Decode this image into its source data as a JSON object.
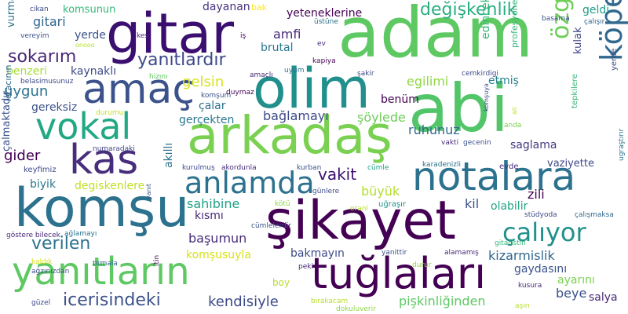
{
  "words": [
    {
      "text": "adam",
      "color": "#5ec962"
    },
    {
      "text": "abi",
      "color": "#52c569"
    },
    {
      "text": "gitar",
      "color": "#3b0f70"
    },
    {
      "text": "olim",
      "color": "#21908d"
    },
    {
      "text": "arkadaş",
      "color": "#7ad151"
    },
    {
      "text": "şikayet",
      "color": "#440154"
    },
    {
      "text": "komşu",
      "color": "#2c728e"
    },
    {
      "text": "yanıtların",
      "color": "#5ec962"
    },
    {
      "text": "tuğlaları",
      "color": "#440154"
    },
    {
      "text": "notalara",
      "color": "#2c728e"
    },
    {
      "text": "amaç",
      "color": "#3b528b"
    },
    {
      "text": "vokal",
      "color": "#22a884"
    },
    {
      "text": "kas",
      "color": "#472d7b"
    },
    {
      "text": "anlamda",
      "color": "#2c728e"
    },
    {
      "text": "köpeğin",
      "color": "#31688e"
    },
    {
      "text": "özgüven",
      "color": "#6ece58"
    },
    {
      "text": "çalıyor",
      "color": "#21918c"
    },
    {
      "text": "değişkenlik",
      "color": "#28ae80"
    },
    {
      "text": "yanıtlardır",
      "color": "#3e4a89"
    },
    {
      "text": "sokarım",
      "color": "#482878"
    },
    {
      "text": "yeteneklerine",
      "color": "#440154"
    },
    {
      "text": "komsunun",
      "color": "#35b779"
    },
    {
      "text": "dayanan",
      "color": "#46337e"
    },
    {
      "text": "bak",
      "color": "#fde725"
    },
    {
      "text": "geldi",
      "color": "#1f9e89"
    },
    {
      "text": "gitari",
      "color": "#31688e"
    },
    {
      "text": "yerde",
      "color": "#3b528b"
    },
    {
      "text": "vurma",
      "color": "#2c728e"
    },
    {
      "text": "amfi",
      "color": "#482878"
    },
    {
      "text": "brutal",
      "color": "#2a788e"
    },
    {
      "text": "kulak",
      "color": "#414487"
    },
    {
      "text": "edincek",
      "color": "#35b779"
    },
    {
      "text": "benzeri",
      "color": "#a5db36"
    },
    {
      "text": "kaynaklı",
      "color": "#3e4a89"
    },
    {
      "text": "uygun",
      "color": "#2c728e"
    },
    {
      "text": "gelsin",
      "color": "#d8e219"
    },
    {
      "text": "egilimi",
      "color": "#8fd744"
    },
    {
      "text": "etmiş",
      "color": "#26828e"
    },
    {
      "text": "benüm",
      "color": "#440154"
    },
    {
      "text": "çalar",
      "color": "#2c728e"
    },
    {
      "text": "gereksiz",
      "color": "#3b528b"
    },
    {
      "text": "gerçekten",
      "color": "#2a788e"
    },
    {
      "text": "bağlamayı",
      "color": "#3e4a89"
    },
    {
      "text": "şöylede",
      "color": "#6ece58"
    },
    {
      "text": "ruhunuz",
      "color": "#31688e"
    },
    {
      "text": "saglama",
      "color": "#443983"
    },
    {
      "text": "gider",
      "color": "#440154"
    },
    {
      "text": "vakit",
      "color": "#3b0f70"
    },
    {
      "text": "büyük",
      "color": "#b5de2b"
    },
    {
      "text": "zili",
      "color": "#440154"
    },
    {
      "text": "vaziyette",
      "color": "#3e4a89"
    },
    {
      "text": "biyik",
      "color": "#2a788e"
    },
    {
      "text": "degiskenlere",
      "color": "#c2df23"
    },
    {
      "text": "akıllı",
      "color": "#2c728e"
    },
    {
      "text": "sahibine",
      "color": "#1fa187"
    },
    {
      "text": "kil",
      "color": "#3b528b"
    },
    {
      "text": "olabilir",
      "color": "#20a486"
    },
    {
      "text": "kısmı",
      "color": "#482878"
    },
    {
      "text": "kizarmislik",
      "color": "#31688e"
    },
    {
      "text": "verilen",
      "color": "#2c728e"
    },
    {
      "text": "başumun",
      "color": "#472d7b"
    },
    {
      "text": "komşusuyla",
      "color": "#d8e219"
    },
    {
      "text": "bakmayın",
      "color": "#3e4a89"
    },
    {
      "text": "gaydasını",
      "color": "#3b528b"
    },
    {
      "text": "ayarını",
      "color": "#7ad151"
    },
    {
      "text": "beye",
      "color": "#3b528b"
    },
    {
      "text": "salya",
      "color": "#482878"
    },
    {
      "text": "icerisindeki",
      "color": "#3b528b"
    },
    {
      "text": "kendisiyle",
      "color": "#3e4a89"
    },
    {
      "text": "pişkinliğinden",
      "color": "#5ec962"
    },
    {
      "text": "boy",
      "color": "#b5de2b"
    },
    {
      "text": "çalmaktadır",
      "color": "#3b528b"
    },
    {
      "text": "icracının",
      "color": "#31688e"
    },
    {
      "text": "profesyonel",
      "color": "#35b779"
    },
    {
      "text": "tepkilere",
      "color": "#35b779"
    },
    {
      "text": "ugraştırır",
      "color": "#2c728e"
    },
    {
      "text": "yerde",
      "color": "#3e4a89"
    },
    {
      "text": "kurulmuş",
      "color": "#3e4a89"
    },
    {
      "text": "akordunla",
      "color": "#472d7b"
    },
    {
      "text": "kurban",
      "color": "#3b528b"
    },
    {
      "text": "cümle",
      "color": "#1fa187"
    },
    {
      "text": "evde",
      "color": "#472d7b"
    },
    {
      "text": "keyfimiz",
      "color": "#3e4a89"
    },
    {
      "text": "numaradaki",
      "color": "#414487"
    },
    {
      "text": "vakti",
      "color": "#472d7b"
    },
    {
      "text": "gecenin",
      "color": "#3b528b"
    },
    {
      "text": "karadenizli",
      "color": "#2c728e"
    },
    {
      "text": "çalışmaksa",
      "color": "#31688e"
    },
    {
      "text": "stüdyoda",
      "color": "#3e4a89"
    },
    {
      "text": "gitaristin",
      "color": "#35b779"
    },
    {
      "text": "alamamış",
      "color": "#482878"
    },
    {
      "text": "yanittir",
      "color": "#3b528b"
    },
    {
      "text": "durur",
      "color": "#8fd744"
    },
    {
      "text": "uğraşır",
      "color": "#21918c"
    },
    {
      "text": "günlere",
      "color": "#3e4a89"
    },
    {
      "text": "kötü",
      "color": "#8fd744"
    },
    {
      "text": "orani",
      "color": "#b5de2b"
    },
    {
      "text": "cümlelerdir",
      "color": "#3b528b"
    },
    {
      "text": "göstere bilecek",
      "color": "#482878"
    },
    {
      "text": "ağlamayı",
      "color": "#2c728e"
    },
    {
      "text": "kaldık",
      "color": "#d8e219"
    },
    {
      "text": "tırmala",
      "color": "#31688e"
    },
    {
      "text": "ağzınızdan",
      "color": "#3b528b"
    },
    {
      "text": "itin",
      "color": "#440154"
    },
    {
      "text": "güzel",
      "color": "#3e4a89"
    },
    {
      "text": "peki",
      "color": "#482878"
    },
    {
      "text": "bırakacam",
      "color": "#b5de2b"
    },
    {
      "text": "dokuluverir",
      "color": "#8fd744"
    },
    {
      "text": "aşırı",
      "color": "#b5de2b"
    },
    {
      "text": "kusura",
      "color": "#482878"
    },
    {
      "text": "cikan",
      "color": "#3e4a89"
    },
    {
      "text": "vereyim",
      "color": "#3b528b"
    },
    {
      "text": "kes",
      "color": "#482878"
    },
    {
      "text": "onooo",
      "color": "#b5de2b"
    },
    {
      "text": "iş",
      "color": "#440154"
    },
    {
      "text": "üstüne",
      "color": "#2c728e"
    },
    {
      "text": "ev",
      "color": "#482878"
    },
    {
      "text": "basama",
      "color": "#3b528b"
    },
    {
      "text": "çalışır",
      "color": "#31688e"
    },
    {
      "text": "kapiya",
      "color": "#440154"
    },
    {
      "text": "şakir",
      "color": "#3e4a89"
    },
    {
      "text": "uyum",
      "color": "#2c728e"
    },
    {
      "text": "cemkirdigi",
      "color": "#3e4a89"
    },
    {
      "text": "belasimusunuz",
      "color": "#3e4a89"
    },
    {
      "text": "hizını",
      "color": "#5ec962"
    },
    {
      "text": "amaçlı",
      "color": "#482878"
    },
    {
      "text": "komşum",
      "color": "#3b528b"
    },
    {
      "text": "duymaz",
      "color": "#440154"
    },
    {
      "text": "durumu",
      "color": "#c2df23"
    },
    {
      "text": "yanıt",
      "color": "#3b528b"
    },
    {
      "text": "komşuya",
      "color": "#3e4a89"
    },
    {
      "text": "anda",
      "color": "#7ad151"
    },
    {
      "text": "ali",
      "color": "#b5de2b"
    }
  ]
}
